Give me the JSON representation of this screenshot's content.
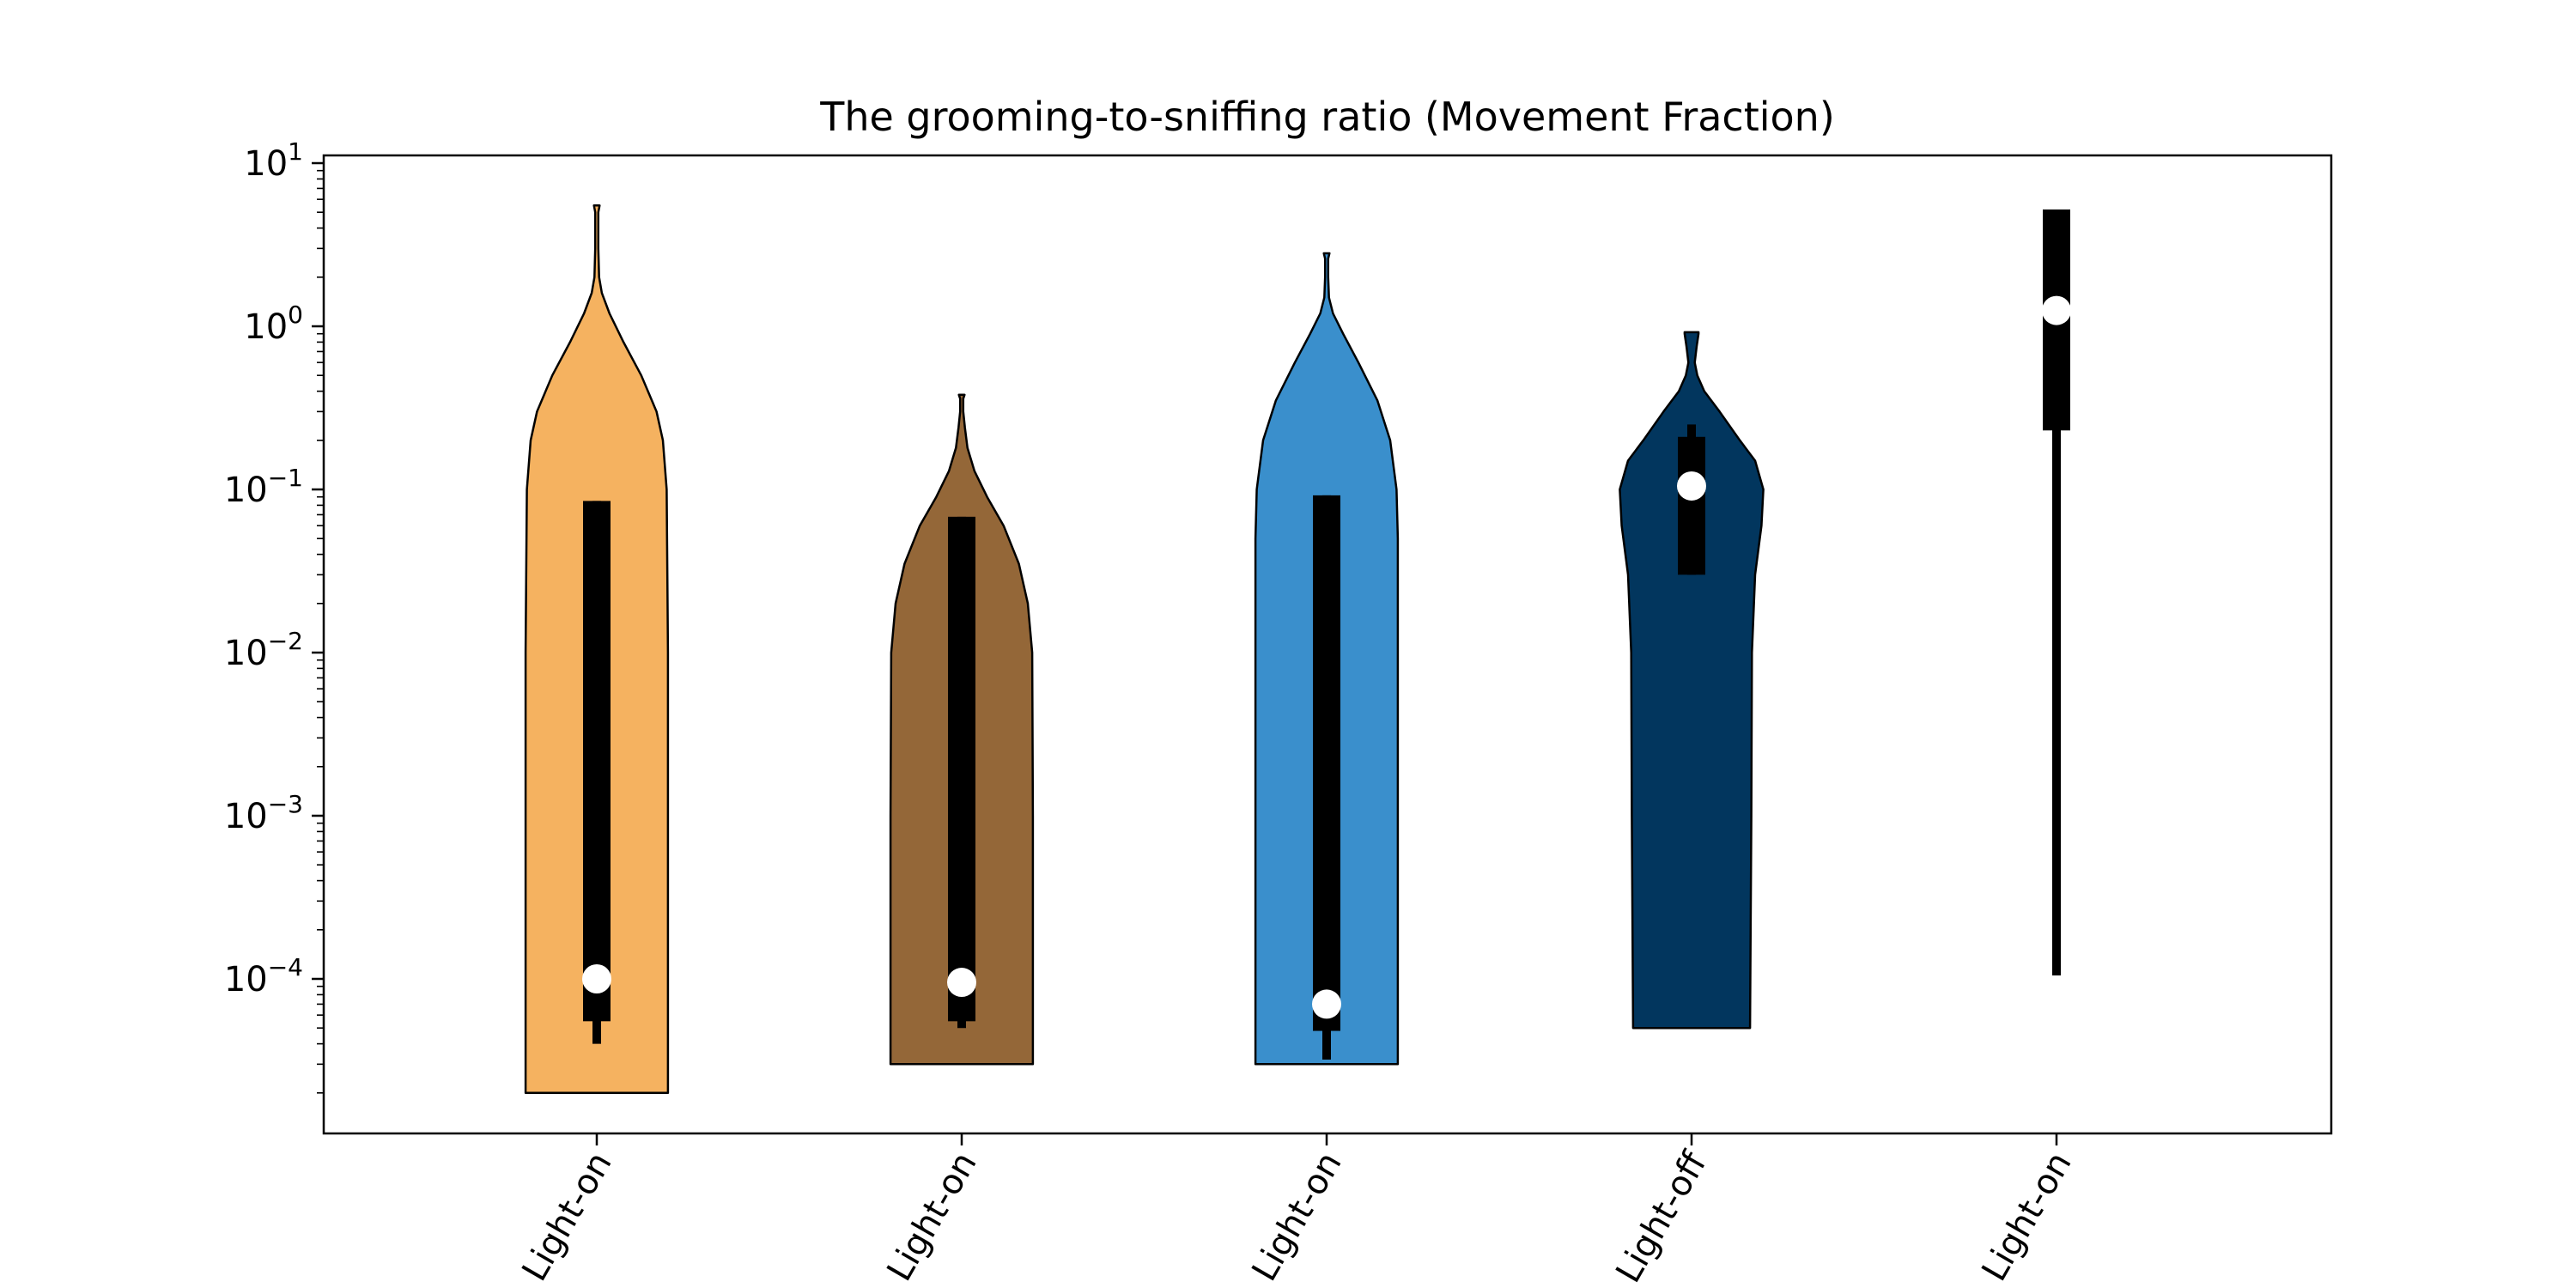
{
  "chart_data": {
    "type": "violin",
    "title": "The grooming-to-sniffing ratio (Movement Fraction)",
    "xlabel": "",
    "ylabel": "",
    "yscale": "log",
    "ylim": [
      4.5e-06,
      11
    ],
    "yticks": [
      {
        "base": "10",
        "exp": "1",
        "value": 10
      },
      {
        "base": "10",
        "exp": "0",
        "value": 1
      },
      {
        "base": "10",
        "exp": "−1",
        "value": 0.1
      },
      {
        "base": "10",
        "exp": "−2",
        "value": 0.01
      },
      {
        "base": "10",
        "exp": "−3",
        "value": 0.001
      },
      {
        "base": "10",
        "exp": "−4",
        "value": 0.0001
      }
    ],
    "grid": false,
    "categories": [
      "Light-on",
      "Light-on",
      "Light-on",
      "Light-off",
      "Light-on"
    ],
    "series": [
      {
        "color": "#f5b260",
        "min": 2e-05,
        "max": 5.5,
        "q1": 5.5e-05,
        "q3": 0.085,
        "whisker_low": 4e-05,
        "whisker_high": 0.085,
        "median": 0.0001,
        "density": [
          [
            2e-05,
            0.56
          ],
          [
            0.0002,
            0.56
          ],
          [
            0.01,
            0.56
          ],
          [
            0.1,
            0.55
          ],
          [
            0.2,
            0.52
          ],
          [
            0.3,
            0.47
          ],
          [
            0.5,
            0.35
          ],
          [
            0.8,
            0.21
          ],
          [
            1.2,
            0.1
          ],
          [
            1.6,
            0.04
          ],
          [
            2.0,
            0.018
          ],
          [
            3.0,
            0.012
          ],
          [
            5.0,
            0.012
          ],
          [
            5.5,
            0.022
          ]
        ]
      },
      {
        "color": "#946738",
        "min": 3e-05,
        "max": 0.38,
        "q1": 5.5e-05,
        "q3": 0.068,
        "whisker_low": 5e-05,
        "whisker_high": 0.068,
        "median": 9.52e-05,
        "density": [
          [
            3e-05,
            0.56
          ],
          [
            0.001,
            0.56
          ],
          [
            0.01,
            0.555
          ],
          [
            0.02,
            0.52
          ],
          [
            0.035,
            0.45
          ],
          [
            0.06,
            0.33
          ],
          [
            0.09,
            0.2
          ],
          [
            0.13,
            0.1
          ],
          [
            0.18,
            0.045
          ],
          [
            0.24,
            0.025
          ],
          [
            0.3,
            0.012
          ],
          [
            0.36,
            0.012
          ],
          [
            0.38,
            0.022
          ]
        ]
      },
      {
        "color": "#3a8fcc",
        "min": 3e-05,
        "max": 2.8,
        "q1": 4.8e-05,
        "q3": 0.092,
        "whisker_low": 3.2e-05,
        "whisker_high": 0.092,
        "median": 7e-05,
        "density": [
          [
            3e-05,
            0.56
          ],
          [
            0.001,
            0.56
          ],
          [
            0.05,
            0.56
          ],
          [
            0.1,
            0.55
          ],
          [
            0.2,
            0.5
          ],
          [
            0.35,
            0.4
          ],
          [
            0.6,
            0.25
          ],
          [
            0.9,
            0.13
          ],
          [
            1.2,
            0.05
          ],
          [
            1.5,
            0.018
          ],
          [
            2.0,
            0.012
          ],
          [
            2.6,
            0.012
          ],
          [
            2.8,
            0.022
          ]
        ]
      },
      {
        "color": "#02365e",
        "min": 5e-05,
        "max": 0.92,
        "q1": 0.03,
        "q3": 0.21,
        "whisker_low": 0.03,
        "whisker_high": 0.25,
        "median": 0.105,
        "density": [
          [
            5e-05,
            0.46
          ],
          [
            0.001,
            0.47
          ],
          [
            0.01,
            0.475
          ],
          [
            0.03,
            0.5
          ],
          [
            0.06,
            0.55
          ],
          [
            0.1,
            0.565
          ],
          [
            0.15,
            0.5
          ],
          [
            0.2,
            0.38
          ],
          [
            0.3,
            0.22
          ],
          [
            0.4,
            0.1
          ],
          [
            0.5,
            0.045
          ],
          [
            0.6,
            0.025
          ],
          [
            0.75,
            0.04
          ],
          [
            0.9,
            0.055
          ],
          [
            0.92,
            0.055
          ]
        ]
      },
      {
        "color": "#000000",
        "min": 0.000105,
        "max": 5.2,
        "q1": 0.23,
        "q3": 5.2,
        "whisker_low": 0.000105,
        "whisker_high": 5.2,
        "median": 1.25,
        "density": []
      }
    ]
  }
}
